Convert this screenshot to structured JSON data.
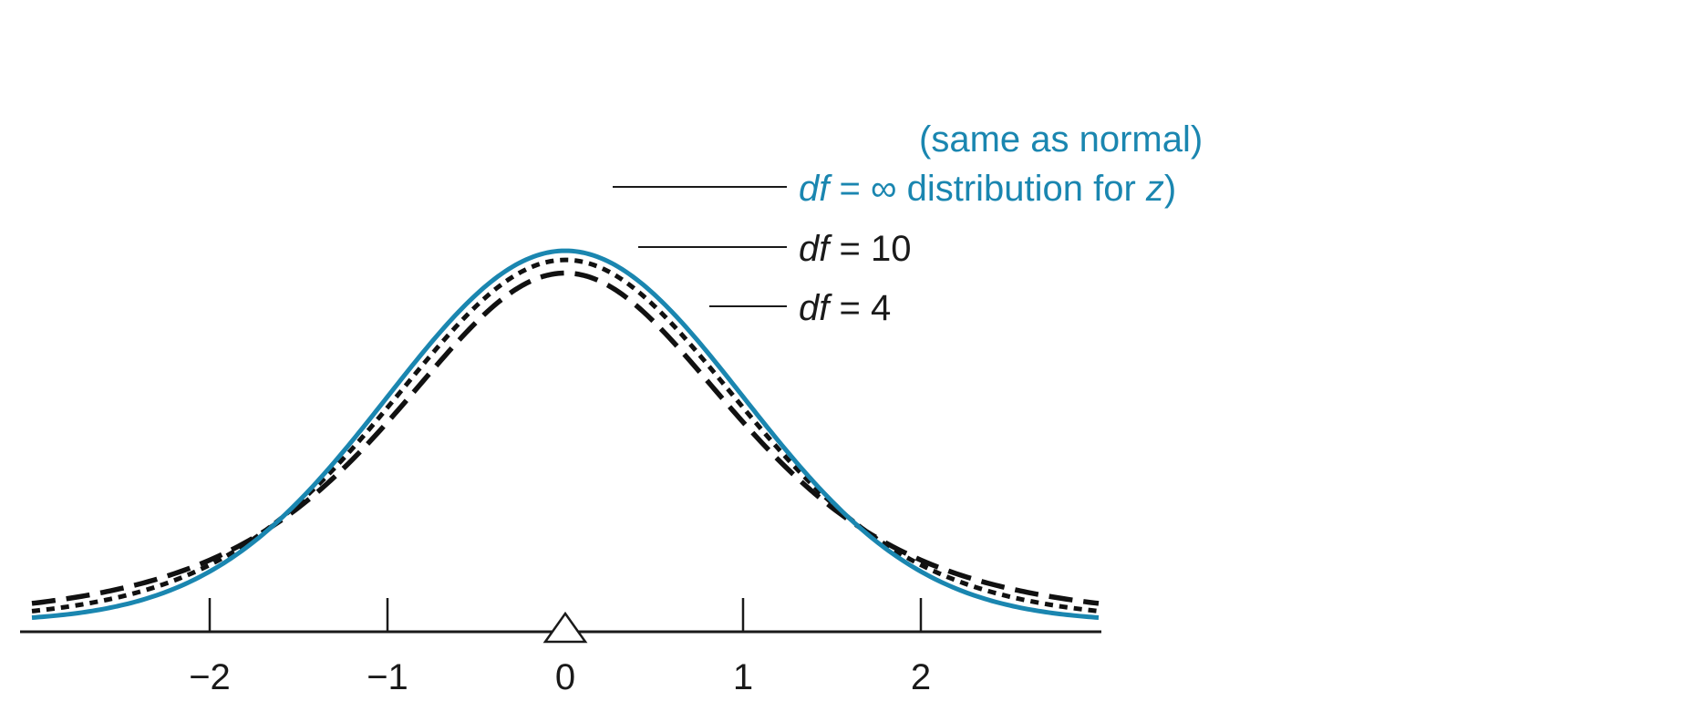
{
  "chart_data": {
    "type": "line",
    "title": "",
    "xlabel": "",
    "ylabel": "",
    "xlim": [
      -3,
      3
    ],
    "x_ticks": [
      -2,
      -1,
      0,
      1,
      2
    ],
    "x_tick_labels": [
      "−2",
      "−1",
      "0",
      "1",
      "2"
    ],
    "mean_marker": 0,
    "grid": false,
    "series": [
      {
        "name": "df = ∞",
        "df": "infinity",
        "style": "solid",
        "color": "#1a86b0"
      },
      {
        "name": "df = 10",
        "df": 10,
        "style": "short-dash",
        "color": "#111111"
      },
      {
        "name": "df = 4",
        "df": 4,
        "style": "long-dash",
        "color": "#111111"
      }
    ],
    "annotations": {
      "normal_line1": "(same as normal)",
      "normal_df": "df",
      "normal_eq": " = ∞ distribution for ",
      "normal_z": "z",
      "normal_close": ")",
      "df10_df": "df",
      "df10_eq": " = 10",
      "df4_df": "df",
      "df4_eq": " = 4"
    }
  }
}
